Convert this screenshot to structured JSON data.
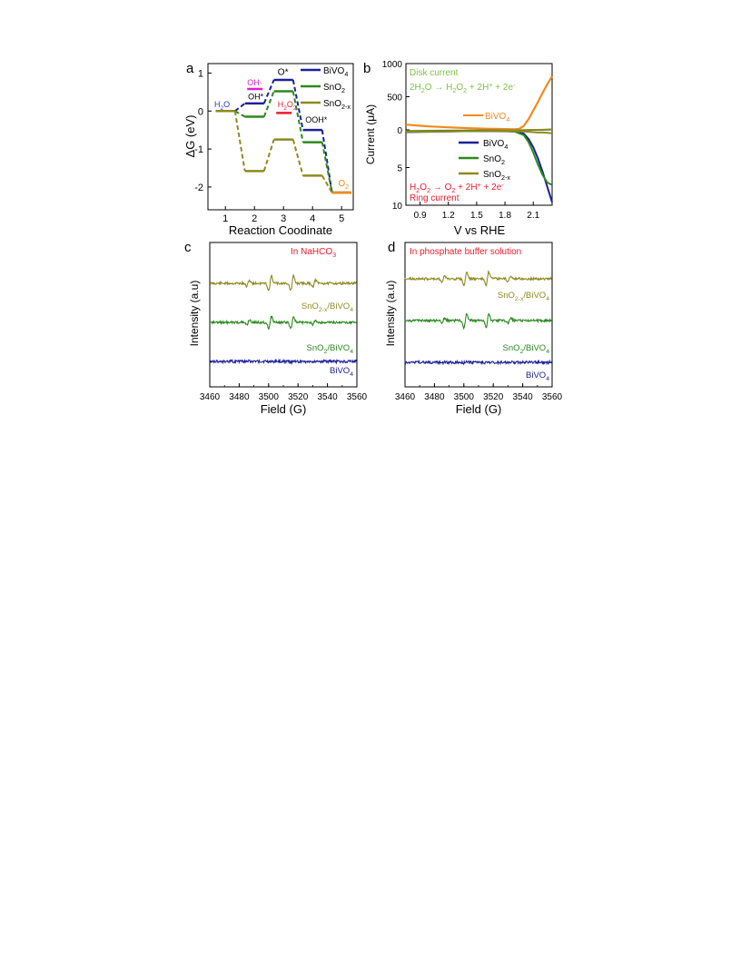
{
  "colors": {
    "bivo4": "#1c2196",
    "sno2": "#2a8a1e",
    "sno2x": "#8d8a1f",
    "orange": "#f28a1e",
    "magenta": "#e020d0",
    "red": "#ee1b2b",
    "blue_label": "#2c35c8",
    "light_green": "#7dc243"
  },
  "chart_data": [
    {
      "panel": "a",
      "type": "line",
      "xlabel": "Reaction Coodinate",
      "ylabel": "ΔG (eV)",
      "xlim": [
        0.4,
        5.4
      ],
      "ylim": [
        -2.6,
        1.25
      ],
      "xticks": [
        1,
        2,
        3,
        4,
        5
      ],
      "yticks": [
        -2,
        -1,
        0,
        1
      ],
      "series": [
        {
          "name": "BiVO4",
          "steps": [
            [
              1,
              0.0
            ],
            [
              2,
              0.2
            ],
            [
              3,
              0.82
            ],
            [
              4,
              -0.5
            ],
            [
              5,
              -2.15
            ]
          ]
        },
        {
          "name": "SnO2",
          "steps": [
            [
              1,
              0.0
            ],
            [
              2,
              -0.15
            ],
            [
              3,
              0.52
            ],
            [
              4,
              -0.82
            ],
            [
              5,
              -2.15
            ]
          ]
        },
        {
          "name": "SnO2-x",
          "steps": [
            [
              1,
              0.0
            ],
            [
              2,
              -1.58
            ],
            [
              3,
              -0.75
            ],
            [
              4,
              -1.7
            ],
            [
              5,
              -2.15
            ]
          ]
        }
      ],
      "extra_levels": [
        {
          "label": "OH·",
          "x": 2,
          "y": 0.58,
          "color": "magenta"
        },
        {
          "label": "H2O2",
          "x": 3,
          "y": -0.05,
          "color": "red"
        }
      ],
      "annotations": {
        "h2o": "H2O",
        "oh_star": "OH*",
        "oh_radical": "OH·",
        "o_star": "O*",
        "h2o2": "H2O2",
        "ooh_star": "OOH*",
        "o2": "O2"
      }
    },
    {
      "panel": "b",
      "type": "line",
      "xlabel": "V vs RHE",
      "ylabel": "Current (μA)",
      "xlim": [
        0.75,
        2.3
      ],
      "xticks": [
        0.9,
        1.2,
        1.5,
        1.8,
        2.1
      ],
      "disk_ylim": [
        0,
        1000
      ],
      "disk_yticks": [
        0,
        500,
        1000
      ],
      "ring_ylim": [
        0,
        10
      ],
      "ring_yticks": [
        0,
        5,
        10
      ],
      "disk_title": "Disk current",
      "disk_reaction": "2H2O → H2O2 + 2H+ + 2e-",
      "ring_reaction": "H2O2 → O2 + 2H+ + 2e-",
      "ring_title": "Ring current",
      "disk_series": [
        {
          "name": "BiVO4",
          "color": "orange",
          "x": [
            0.75,
            0.9,
            1.0,
            1.2,
            1.4,
            1.6,
            1.8,
            1.9,
            1.95,
            2.0,
            2.05,
            2.1,
            2.15,
            2.2,
            2.25,
            2.3
          ],
          "y": [
            80,
            62,
            52,
            38,
            26,
            18,
            12,
            10,
            15,
            60,
            160,
            290,
            420,
            560,
            690,
            810
          ]
        },
        {
          "name": "BiVO4",
          "color": "bivo4",
          "x": [
            0.75,
            1.2,
            1.6,
            2.0,
            2.3
          ],
          "y": [
            -20,
            -15,
            -10,
            -5,
            5
          ]
        },
        {
          "name": "SnO2",
          "color": "sno2",
          "x": [
            0.75,
            1.2,
            1.6,
            2.0,
            2.3
          ],
          "y": [
            -25,
            -20,
            -12,
            -6,
            4
          ]
        },
        {
          "name": "SnO2-x",
          "color": "sno2x",
          "x": [
            0.75,
            1.2,
            1.6,
            2.0,
            2.3
          ],
          "y": [
            -15,
            -10,
            -8,
            -3,
            6
          ]
        }
      ],
      "ring_series": [
        {
          "name": "BiVO4",
          "color": "bivo4",
          "x": [
            0.75,
            1.2,
            1.6,
            1.9,
            2.0,
            2.05,
            2.1,
            2.15,
            2.2,
            2.25,
            2.3
          ],
          "y": [
            0.3,
            0.2,
            0.15,
            0.2,
            0.5,
            1.2,
            2.3,
            3.8,
            5.6,
            7.6,
            9.6
          ]
        },
        {
          "name": "SnO2",
          "color": "sno2",
          "x": [
            0.75,
            1.2,
            1.6,
            1.9,
            2.0,
            2.05,
            2.1,
            2.15,
            2.2,
            2.25,
            2.3
          ],
          "y": [
            0.2,
            0.15,
            0.1,
            0.2,
            0.7,
            1.6,
            3.0,
            4.6,
            6.0,
            7.0,
            7.3
          ]
        },
        {
          "name": "SnO2-x",
          "color": "sno2x",
          "x": [
            0.75,
            1.2,
            1.6,
            1.9,
            2.0,
            2.05,
            2.1,
            2.15,
            2.2,
            2.25,
            2.3
          ],
          "y": [
            0.25,
            0.2,
            0.15,
            0.15,
            0.2,
            0.25,
            0.3,
            0.35,
            0.35,
            0.4,
            0.45
          ]
        }
      ]
    },
    {
      "panel": "c",
      "type": "line",
      "title": "In NaHCO3",
      "xlabel": "Field (G)",
      "ylabel": "Intensity (a.u)",
      "xlim": [
        3460,
        3560
      ],
      "xticks": [
        3460,
        3480,
        3500,
        3520,
        3540,
        3560
      ],
      "peaks": [
        3486,
        3501,
        3516,
        3531
      ],
      "series": [
        {
          "name": "SnO2-x/BiVO4",
          "color": "sno2x",
          "offset": 2.0,
          "amplitudes": [
            0.45,
            1.05,
            1.05,
            0.45
          ]
        },
        {
          "name": "SnO2/BiVO4",
          "color": "sno2",
          "offset": 1.0,
          "amplitudes": [
            0.35,
            0.85,
            0.85,
            0.35
          ]
        },
        {
          "name": "BiVO4",
          "color": "bivo4",
          "offset": 0.0,
          "amplitudes": [
            0.04,
            0.06,
            0.06,
            0.04
          ]
        }
      ]
    },
    {
      "panel": "d",
      "type": "line",
      "title": "In phosphate buffer solution",
      "xlabel": "Field (G)",
      "ylabel": "Intensity (a.u)",
      "xlim": [
        3460,
        3560
      ],
      "xticks": [
        3460,
        3480,
        3500,
        3520,
        3540,
        3560
      ],
      "peaks": [
        3486,
        3501,
        3516,
        3531
      ],
      "series": [
        {
          "name": "SnO2-x/BiVO4",
          "color": "sno2x",
          "offset": 2.0,
          "amplitudes": [
            0.4,
            1.0,
            1.0,
            0.4
          ]
        },
        {
          "name": "SnO2/BiVO4",
          "color": "sno2",
          "offset": 1.0,
          "amplitudes": [
            0.4,
            1.0,
            1.0,
            0.4
          ]
        },
        {
          "name": "BiVO4",
          "color": "bivo4",
          "offset": 0.0,
          "amplitudes": [
            0.04,
            0.06,
            0.06,
            0.04
          ]
        }
      ]
    }
  ],
  "labels": {
    "panel_a": "a",
    "panel_b": "b",
    "panel_c": "c",
    "panel_d": "d",
    "a_legend": [
      {
        "base": "BiVO",
        "sub": "4"
      },
      {
        "base": "SnO",
        "sub": "2"
      },
      {
        "base": "SnO",
        "sub": "2-x"
      }
    ],
    "b_legend": [
      {
        "base": "BiVO",
        "sub": "4"
      },
      {
        "base": "SnO",
        "sub": "2"
      },
      {
        "base": "SnO",
        "sub": "2-x"
      }
    ],
    "b_orange_label": {
      "base": "BiVO",
      "sub": "4"
    },
    "c_series_labels": [
      {
        "pre": "SnO",
        "sub": "2-x",
        "post": "/BiVO",
        "sub2": "4"
      },
      {
        "pre": "SnO",
        "sub": "2",
        "post": "/BiVO",
        "sub2": "4"
      },
      {
        "pre": "BiVO",
        "sub": "4",
        "post": "",
        "sub2": ""
      }
    ]
  }
}
